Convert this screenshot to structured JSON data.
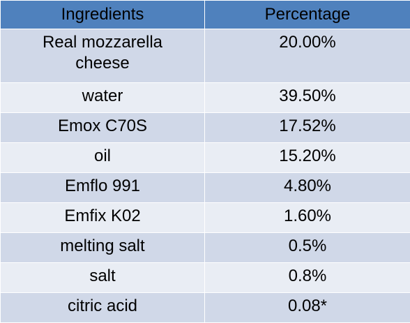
{
  "table": {
    "headers": [
      "Ingredients",
      "Percentage"
    ],
    "rows": [
      {
        "ingredient": "Real mozzarella cheese",
        "percentage": "20.00%"
      },
      {
        "ingredient": "water",
        "percentage": "39.50%"
      },
      {
        "ingredient": "Emox C70S",
        "percentage": "17.52%"
      },
      {
        "ingredient": "oil",
        "percentage": "15.20%"
      },
      {
        "ingredient": "Emflo 991",
        "percentage": "4.80%"
      },
      {
        "ingredient": "Emfix K02",
        "percentage": "1.60%"
      },
      {
        "ingredient": "melting salt",
        "percentage": "0.5%"
      },
      {
        "ingredient": "salt",
        "percentage": "0.8%"
      },
      {
        "ingredient": "citric acid",
        "percentage": "0.08*"
      }
    ]
  },
  "colors": {
    "header_bg": "#4f81bd",
    "row_odd_bg": "#d0d8e8",
    "row_even_bg": "#e9edf4"
  }
}
